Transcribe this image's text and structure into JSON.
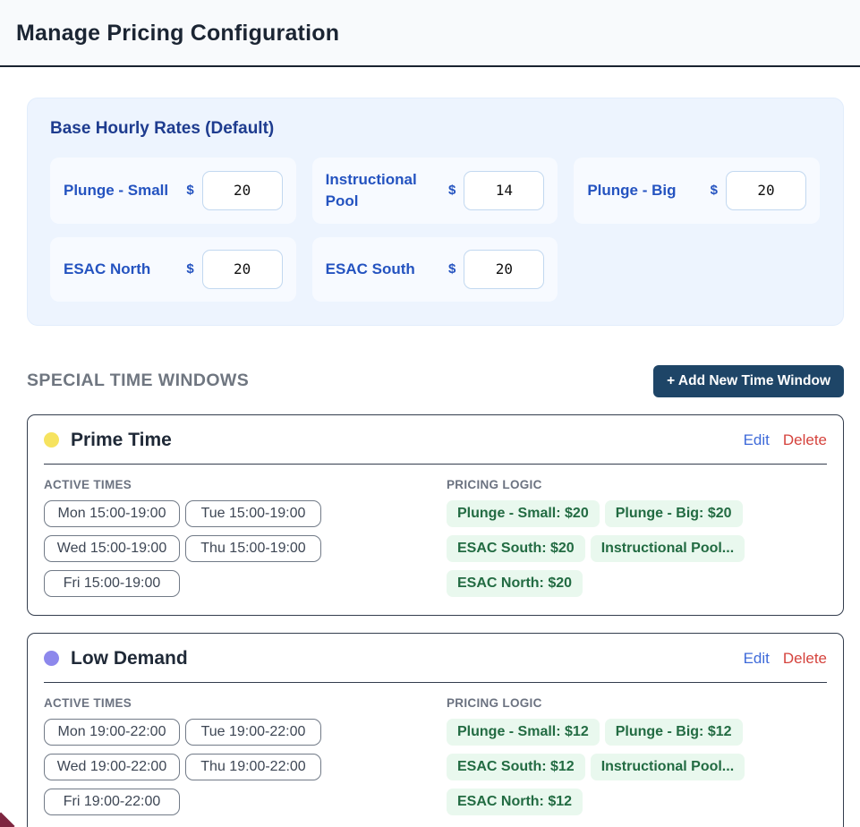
{
  "page": {
    "title": "Manage Pricing Configuration"
  },
  "base_rates": {
    "title": "Base Hourly Rates (Default)",
    "currency": "$",
    "items": [
      {
        "label": "Plunge - Small",
        "value": "20"
      },
      {
        "label": "Instructional Pool",
        "value": "14"
      },
      {
        "label": "Plunge - Big",
        "value": "20"
      },
      {
        "label": "ESAC North",
        "value": "20"
      },
      {
        "label": "ESAC South",
        "value": "20"
      }
    ]
  },
  "special_windows": {
    "heading": "SPECIAL TIME WINDOWS",
    "add_button_label": "+ Add New Time Window",
    "active_times_label": "ACTIVE TIMES",
    "pricing_logic_label": "PRICING LOGIC",
    "edit_label": "Edit",
    "delete_label": "Delete",
    "windows": [
      {
        "name": "Prime Time",
        "dot_color": "#f6e35f",
        "active_times": [
          "Mon 15:00-19:00",
          "Tue 15:00-19:00",
          "Wed 15:00-19:00",
          "Thu 15:00-19:00",
          "Fri 15:00-19:00"
        ],
        "pricing": [
          "Plunge - Small: $20",
          "Plunge - Big: $20",
          "ESAC South: $20",
          "Instructional Pool...",
          "ESAC North: $20"
        ]
      },
      {
        "name": "Low Demand",
        "dot_color": "#8d88ec",
        "active_times": [
          "Mon 19:00-22:00",
          "Tue 19:00-22:00",
          "Wed 19:00-22:00",
          "Thu 19:00-22:00",
          "Fri 19:00-22:00"
        ],
        "pricing": [
          "Plunge - Small: $12",
          "Plunge - Big: $12",
          "ESAC South: $12",
          "Instructional Pool...",
          "ESAC North: $12"
        ]
      }
    ]
  },
  "colors": {
    "add_button_bg": "#1e4567",
    "panel_bg": "#edf4fe",
    "rate_label_blue": "#2453c0",
    "price_pill_bg": "#e9f8ee",
    "price_pill_text": "#226b42",
    "edit_link": "#3e6ad9",
    "delete_link": "#d5433d",
    "prime_time_dot": "#f6e35f",
    "low_demand_dot": "#8d88ec"
  }
}
